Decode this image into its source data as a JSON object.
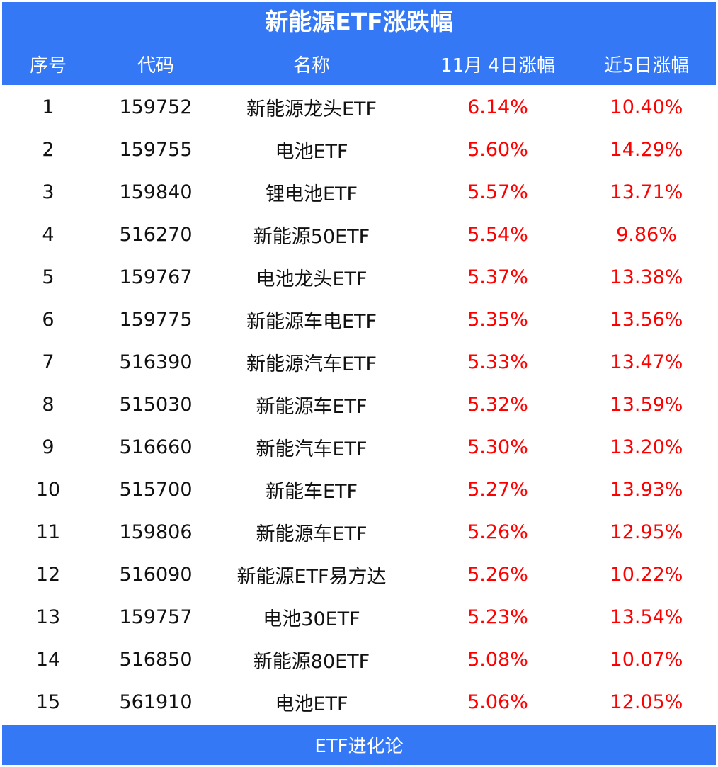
{
  "title": "新能源ETF涨跌幅",
  "headers": {
    "index": "序号",
    "code": "代码",
    "name": "名称",
    "change_day": "11月 4日涨幅",
    "change_5d": "近5日涨幅"
  },
  "rows": [
    {
      "index": "1",
      "code": "159752",
      "name": "新能源龙头ETF",
      "change_day": "6.14%",
      "change_5d": "10.40%"
    },
    {
      "index": "2",
      "code": "159755",
      "name": "电池ETF",
      "change_day": "5.60%",
      "change_5d": "14.29%"
    },
    {
      "index": "3",
      "code": "159840",
      "name": "锂电池ETF",
      "change_day": "5.57%",
      "change_5d": "13.71%"
    },
    {
      "index": "4",
      "code": "516270",
      "name": "新能源50ETF",
      "change_day": "5.54%",
      "change_5d": "9.86%"
    },
    {
      "index": "5",
      "code": "159767",
      "name": "电池龙头ETF",
      "change_day": "5.37%",
      "change_5d": "13.38%"
    },
    {
      "index": "6",
      "code": "159775",
      "name": "新能源车电ETF",
      "change_day": "5.35%",
      "change_5d": "13.56%"
    },
    {
      "index": "7",
      "code": "516390",
      "name": "新能源汽车ETF",
      "change_day": "5.33%",
      "change_5d": "13.47%"
    },
    {
      "index": "8",
      "code": "515030",
      "name": "新能源车ETF",
      "change_day": "5.32%",
      "change_5d": "13.59%"
    },
    {
      "index": "9",
      "code": "516660",
      "name": "新能汽车ETF",
      "change_day": "5.30%",
      "change_5d": "13.20%"
    },
    {
      "index": "10",
      "code": "515700",
      "name": "新能车ETF",
      "change_day": "5.27%",
      "change_5d": "13.93%"
    },
    {
      "index": "11",
      "code": "159806",
      "name": "新能源车ETF",
      "change_day": "5.26%",
      "change_5d": "12.95%"
    },
    {
      "index": "12",
      "code": "516090",
      "name": "新能源ETF易方达",
      "change_day": "5.26%",
      "change_5d": "10.22%"
    },
    {
      "index": "13",
      "code": "159757",
      "name": "电池30ETF",
      "change_day": "5.23%",
      "change_5d": "13.54%"
    },
    {
      "index": "14",
      "code": "516850",
      "name": "新能源80ETF",
      "change_day": "5.08%",
      "change_5d": "10.07%"
    },
    {
      "index": "15",
      "code": "561910",
      "name": "电池ETF",
      "change_day": "5.06%",
      "change_5d": "12.05%"
    }
  ],
  "footer": "ETF进化论",
  "colors": {
    "header_bg": "#3478f6",
    "header_text": "#ffffff",
    "body_text": "#111111",
    "positive_change": "#ff0000"
  }
}
